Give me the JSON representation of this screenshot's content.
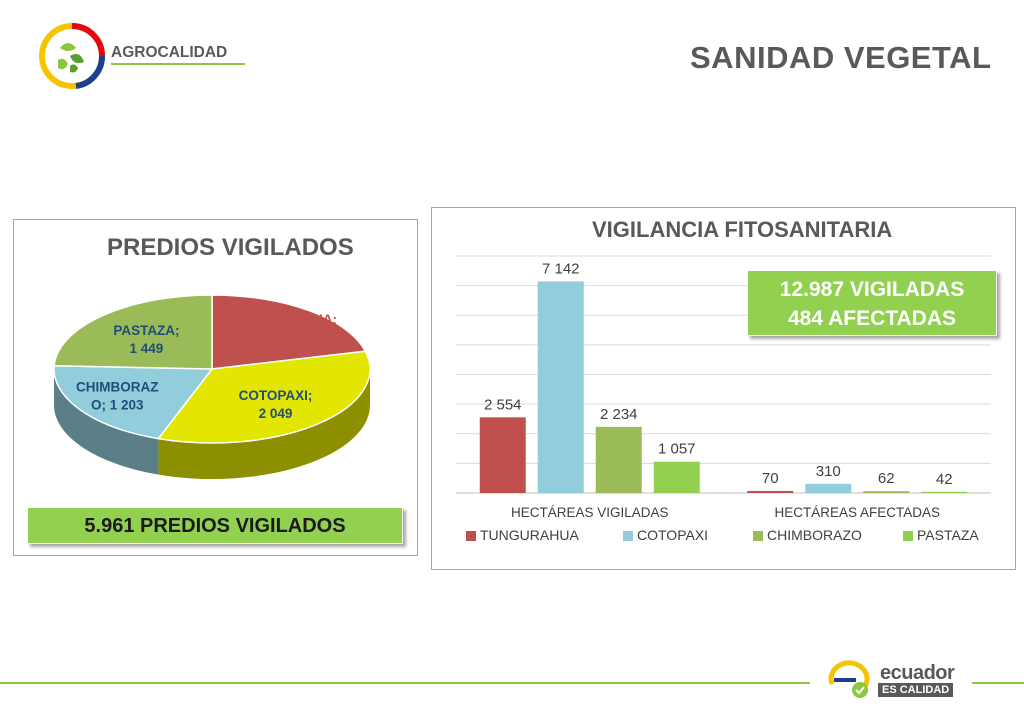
{
  "header": {
    "title": "SANIDAD VEGETAL"
  },
  "brand": {
    "name": "AGROCALIDAD"
  },
  "footer": {
    "brand_line1": "ecuador",
    "brand_line2": "ES CALIDAD"
  },
  "pie_panel": {
    "summary": "5.961 PREDIOS VIGILADOS"
  },
  "bar_panel": {
    "summary_line1": "12.987 VIGILADAS",
    "summary_line2": "484 AFECTADAS"
  },
  "colors": {
    "tungurahua": "#c0504d",
    "cotopaxi": "#92cddc",
    "chimborazo": "#9bbb59",
    "pastaza": "#92d050",
    "pie_cotopaxi": "#e2e600",
    "accent_green": "#8dc63f",
    "title_gray": "#595959"
  },
  "chart_data": [
    {
      "type": "pie",
      "title": "PREDIOS VIGILADOS",
      "categories": [
        "TUNGURAHUA",
        "COTOPAXI",
        "CHIMBORAZO",
        "PASTAZA"
      ],
      "values": [
        1260,
        2049,
        1203,
        1449
      ],
      "data_labels": [
        "TUNGURAHUA;\n1 260",
        "COTOPAXI;\n2 049",
        "CHIMBORAZ\nO; 1 203",
        "PASTAZA;\n1 449"
      ],
      "style": "3d"
    },
    {
      "type": "bar",
      "title": "VIGILANCIA FITOSANITARIA",
      "categories": [
        "HECTÁREAS VIGILADAS",
        "HECTÁREAS AFECTADAS"
      ],
      "series": [
        {
          "name": "TUNGURAHUA",
          "values": [
            2554,
            70
          ],
          "labels": [
            "2 554",
            "70"
          ]
        },
        {
          "name": "COTOPAXI",
          "values": [
            7142,
            310
          ],
          "labels": [
            "7 142",
            "310"
          ]
        },
        {
          "name": "CHIMBORAZO",
          "values": [
            2234,
            62
          ],
          "labels": [
            "2 234",
            "62"
          ]
        },
        {
          "name": "PASTAZA",
          "values": [
            1057,
            42
          ],
          "labels": [
            "1 057",
            "42"
          ]
        }
      ],
      "ylim": [
        0,
        8000
      ],
      "grid": true,
      "legend": "bottom"
    }
  ]
}
